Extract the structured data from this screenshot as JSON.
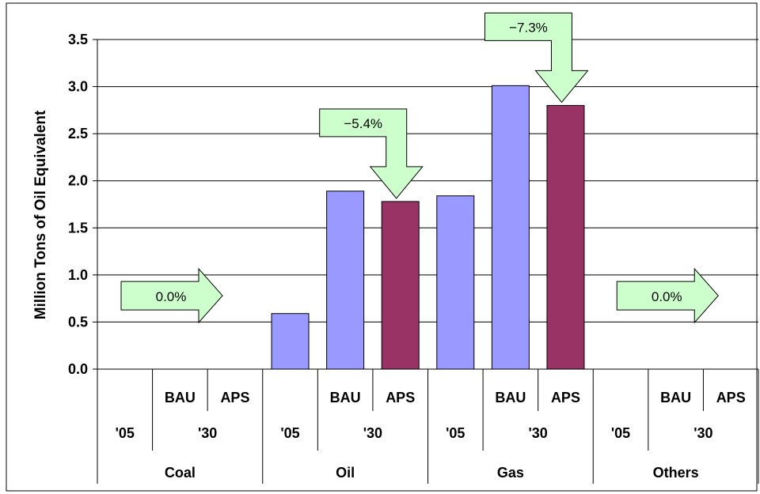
{
  "chart_data": {
    "type": "bar",
    "ylabel": "Million Tons of Oil Equivalent",
    "ylim": [
      0,
      3.5
    ],
    "yticks": [
      "0.0",
      "0.5",
      "1.0",
      "1.5",
      "2.0",
      "2.5",
      "3.0",
      "3.5"
    ],
    "grid": true,
    "groups": [
      {
        "label": "Coal",
        "bars": [
          {
            "year": "'05",
            "scenario": "",
            "value": 0
          },
          {
            "year": "'30",
            "scenario": "BAU",
            "value": 0
          },
          {
            "year": "'30",
            "scenario": "APS",
            "value": 0
          }
        ]
      },
      {
        "label": "Oil",
        "bars": [
          {
            "year": "'05",
            "scenario": "",
            "value": 0.59
          },
          {
            "year": "'30",
            "scenario": "BAU",
            "value": 1.89
          },
          {
            "year": "'30",
            "scenario": "APS",
            "value": 1.78
          }
        ]
      },
      {
        "label": "Gas",
        "bars": [
          {
            "year": "'05",
            "scenario": "",
            "value": 1.84
          },
          {
            "year": "'30",
            "scenario": "BAU",
            "value": 3.01
          },
          {
            "year": "'30",
            "scenario": "APS",
            "value": 2.8
          }
        ]
      },
      {
        "label": "Others",
        "bars": [
          {
            "year": "'05",
            "scenario": "",
            "value": 0
          },
          {
            "year": "'30",
            "scenario": "BAU",
            "value": 0
          },
          {
            "year": "'30",
            "scenario": "APS",
            "value": 0
          }
        ]
      }
    ],
    "year_labels": {
      "base": "'05",
      "target": "'30"
    },
    "scenario_labels": {
      "bau": "BAU",
      "aps": "APS"
    },
    "annotations": [
      {
        "group": "Coal",
        "text": "0.0%",
        "direction": "right"
      },
      {
        "group": "Oil",
        "text": "−5.4%",
        "direction": "down"
      },
      {
        "group": "Gas",
        "text": "−7.3%",
        "direction": "down"
      },
      {
        "group": "Others",
        "text": "0.0%",
        "direction": "right"
      }
    ],
    "colors": {
      "base_bar": "#9999FF",
      "bau_bar": "#9999FF",
      "aps_bar": "#993366",
      "callout_fill": "#CCFFCC",
      "grid": "#000000"
    }
  }
}
